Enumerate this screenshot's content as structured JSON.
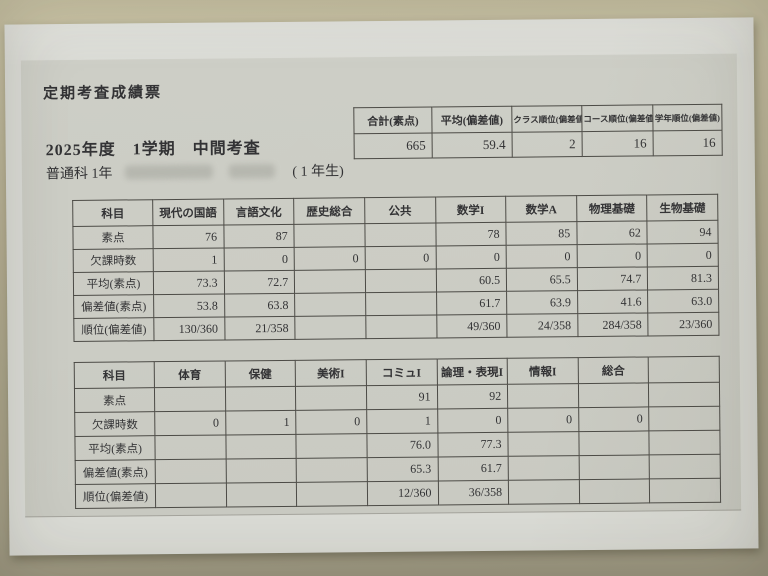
{
  "colors": {
    "desk": "#b4ae92",
    "paper": "#dadbd5",
    "print_area": "#cccdc5",
    "ink": "#333335",
    "table_border": "#4c4b46",
    "redaction": "#b4b5ad"
  },
  "title": "定期考査成績票",
  "exam_line": "2025年度　1学期　中間考査",
  "student_line": {
    "prefix": "普通科 1年",
    "suffix": "( 1 年生)"
  },
  "summary_table": {
    "headers": [
      "合計(素点)",
      "平均(偏差値)",
      "クラス順位(偏差値)",
      "コース順位(偏差値)",
      "学年順位(偏差値)"
    ],
    "values": [
      "665",
      "59.4",
      "2",
      "16",
      "16"
    ]
  },
  "subject_tables": [
    {
      "corner_label": "科目",
      "columns": [
        "現代の国語",
        "言語文化",
        "歴史総合",
        "公共",
        "数学I",
        "数学A",
        "物理基礎",
        "生物基礎"
      ],
      "rows": [
        {
          "label": "素点",
          "cells": [
            "76",
            "87",
            "",
            "",
            "78",
            "85",
            "62",
            "94"
          ]
        },
        {
          "label": "欠課時数",
          "cells": [
            "1",
            "0",
            "0",
            "0",
            "0",
            "0",
            "0",
            "0"
          ]
        },
        {
          "label": "平均(素点)",
          "cells": [
            "73.3",
            "72.7",
            "",
            "",
            "60.5",
            "65.5",
            "74.7",
            "81.3"
          ]
        },
        {
          "label": "偏差値(素点)",
          "cells": [
            "53.8",
            "63.8",
            "",
            "",
            "61.7",
            "63.9",
            "41.6",
            "63.0"
          ]
        },
        {
          "label": "順位(偏差値)",
          "cells": [
            "130/360",
            "21/358",
            "",
            "",
            "49/360",
            "24/358",
            "284/358",
            "23/360"
          ]
        }
      ]
    },
    {
      "corner_label": "科目",
      "columns": [
        "体育",
        "保健",
        "美術I",
        "コミュI",
        "論理・表現I",
        "情報I",
        "総合",
        ""
      ],
      "rows": [
        {
          "label": "素点",
          "cells": [
            "",
            "",
            "",
            "91",
            "92",
            "",
            "",
            ""
          ]
        },
        {
          "label": "欠課時数",
          "cells": [
            "0",
            "1",
            "0",
            "1",
            "0",
            "0",
            "0",
            ""
          ]
        },
        {
          "label": "平均(素点)",
          "cells": [
            "",
            "",
            "",
            "76.0",
            "77.3",
            "",
            "",
            ""
          ]
        },
        {
          "label": "偏差値(素点)",
          "cells": [
            "",
            "",
            "",
            "65.3",
            "61.7",
            "",
            "",
            ""
          ]
        },
        {
          "label": "順位(偏差値)",
          "cells": [
            "",
            "",
            "",
            "12/360",
            "36/358",
            "",
            "",
            ""
          ]
        }
      ]
    }
  ]
}
